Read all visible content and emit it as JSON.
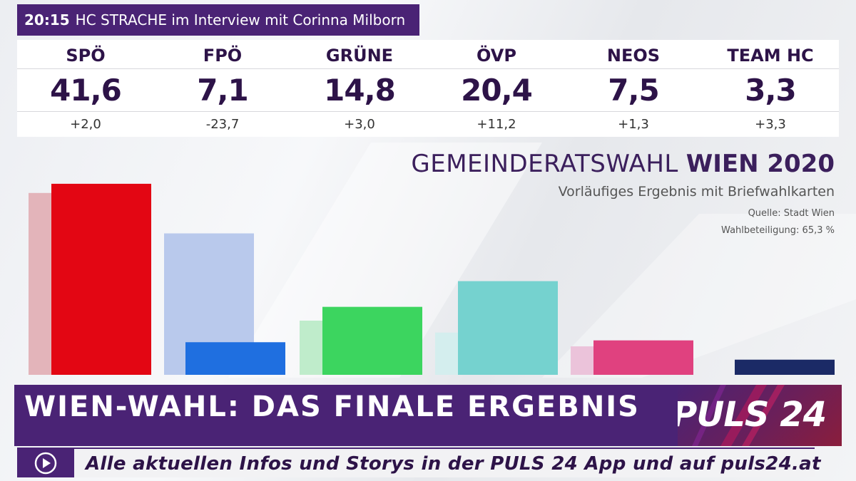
{
  "ticker": {
    "time": "20:15",
    "text": "HC STRACHE im Interview mit Corinna Milborn"
  },
  "results": {
    "parties": [
      "SPÖ",
      "FPÖ",
      "GRÜNE",
      "ÖVP",
      "NEOS",
      "TEAM HC"
    ],
    "values": [
      "41,6",
      "7,1",
      "14,8",
      "20,4",
      "7,5",
      "3,3"
    ],
    "changes": [
      "+2,0",
      "-23,7",
      "+3,0",
      "+11,2",
      "+1,3",
      "+3,3"
    ]
  },
  "chart_data": {
    "type": "bar",
    "title": "GEMEINDERATSWAHL WIEN 2020",
    "title_light": "GEMEINDERATSWAHL",
    "title_bold": "WIEN 2020",
    "subtitle": "Vorläufiges Ergebnis mit Briefwahlkarten",
    "source": "Quelle: Stadt Wien",
    "turnout": "Wahlbeteiligung: 65,3 %",
    "categories": [
      "SPÖ",
      "FPÖ",
      "GRÜNE",
      "ÖVP",
      "NEOS",
      "TEAM HC"
    ],
    "series": [
      {
        "values": [
          39.6,
          30.8,
          11.8,
          9.2,
          6.2,
          0
        ],
        "colors": [
          "#e3b4ba",
          "#b9c9ec",
          "#bfeccb",
          "#d4eeee",
          "#ebc3da",
          "#ffffff"
        ]
      },
      {
        "values": [
          41.6,
          7.1,
          14.8,
          20.4,
          7.5,
          3.3
        ],
        "colors": [
          "#e30613",
          "#1f6fe0",
          "#3cd55f",
          "#75d2cf",
          "#e0417f",
          "#1b2a66"
        ]
      }
    ],
    "ylim": [
      0,
      45
    ],
    "grid": false,
    "legend": "none"
  },
  "lower_third": {
    "headline": "WIEN-WAHL: DAS FINALE ERGEBNIS",
    "logo": "PULS 24",
    "info": "Alle aktuellen Infos und Storys in der PULS 24 App und auf puls24.at"
  },
  "icons": {
    "play": "play-circle-icon"
  }
}
